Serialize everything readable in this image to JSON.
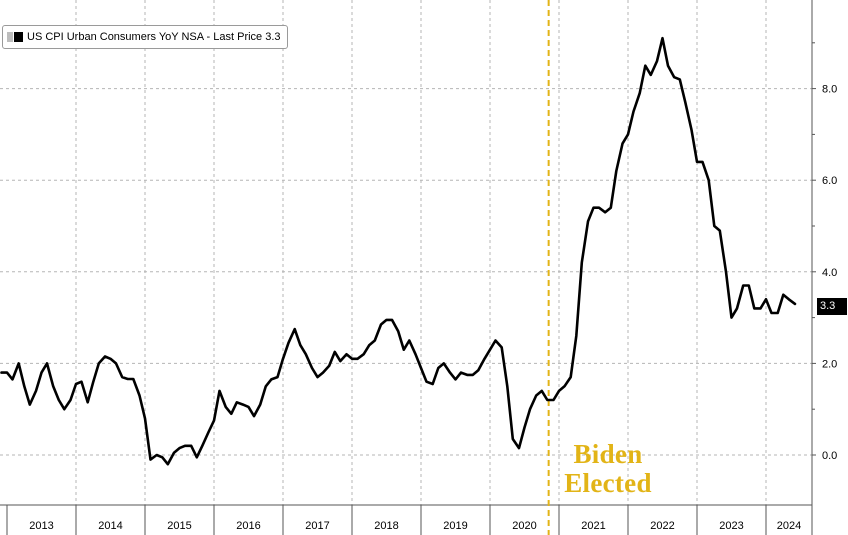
{
  "legend": {
    "label": "US CPI Urban Consumers YoY NSA - Last Price 3.3"
  },
  "annotation": {
    "line1": "Biden",
    "line2": "Elected"
  },
  "last_price_badge": "3.3",
  "colors": {
    "series": "#000000",
    "annotation": "#e2b417",
    "grid": "#b5b5b5",
    "axis": "#555555",
    "badge_bg": "#000000"
  },
  "chart_data": {
    "type": "line",
    "title": "",
    "xlabel": "",
    "ylabel": "",
    "x_ticks": [
      "2013",
      "2014",
      "2015",
      "2016",
      "2017",
      "2018",
      "2019",
      "2020",
      "2021",
      "2022",
      "2023",
      "2024"
    ],
    "y_ticks": [
      "0.0",
      "2.0",
      "4.0",
      "6.0",
      "8.0"
    ],
    "xlim": [
      2013.0,
      2024.75
    ],
    "ylim": [
      -1.0,
      10.0
    ],
    "y_axis_side": "right",
    "grid": true,
    "legend_position": "top-left",
    "vertical_marker": {
      "x": 2020.85,
      "label": "Biden Elected"
    },
    "series": [
      {
        "name": "US CPI Urban Consumers YoY NSA",
        "points": [
          [
            2012.92,
            1.8
          ],
          [
            2013.0,
            1.8
          ],
          [
            2013.08,
            1.65
          ],
          [
            2013.17,
            2.0
          ],
          [
            2013.25,
            1.5
          ],
          [
            2013.33,
            1.1
          ],
          [
            2013.42,
            1.4
          ],
          [
            2013.5,
            1.8
          ],
          [
            2013.58,
            2.0
          ],
          [
            2013.67,
            1.5
          ],
          [
            2013.75,
            1.2
          ],
          [
            2013.83,
            1.0
          ],
          [
            2013.92,
            1.2
          ],
          [
            2014.0,
            1.55
          ],
          [
            2014.08,
            1.6
          ],
          [
            2014.17,
            1.15
          ],
          [
            2014.25,
            1.6
          ],
          [
            2014.33,
            2.0
          ],
          [
            2014.42,
            2.15
          ],
          [
            2014.5,
            2.1
          ],
          [
            2014.58,
            2.0
          ],
          [
            2014.67,
            1.7
          ],
          [
            2014.75,
            1.66
          ],
          [
            2014.83,
            1.66
          ],
          [
            2014.92,
            1.3
          ],
          [
            2015.0,
            0.8
          ],
          [
            2015.08,
            -0.1
          ],
          [
            2015.17,
            0.0
          ],
          [
            2015.25,
            -0.05
          ],
          [
            2015.33,
            -0.2
          ],
          [
            2015.42,
            0.05
          ],
          [
            2015.5,
            0.15
          ],
          [
            2015.58,
            0.2
          ],
          [
            2015.67,
            0.2
          ],
          [
            2015.75,
            -0.05
          ],
          [
            2015.83,
            0.2
          ],
          [
            2015.92,
            0.5
          ],
          [
            2016.0,
            0.75
          ],
          [
            2016.08,
            1.4
          ],
          [
            2016.17,
            1.05
          ],
          [
            2016.25,
            0.9
          ],
          [
            2016.33,
            1.15
          ],
          [
            2016.42,
            1.1
          ],
          [
            2016.5,
            1.05
          ],
          [
            2016.58,
            0.85
          ],
          [
            2016.67,
            1.1
          ],
          [
            2016.75,
            1.5
          ],
          [
            2016.83,
            1.65
          ],
          [
            2016.92,
            1.7
          ],
          [
            2017.0,
            2.1
          ],
          [
            2017.08,
            2.45
          ],
          [
            2017.17,
            2.75
          ],
          [
            2017.25,
            2.4
          ],
          [
            2017.33,
            2.2
          ],
          [
            2017.42,
            1.9
          ],
          [
            2017.5,
            1.7
          ],
          [
            2017.58,
            1.8
          ],
          [
            2017.67,
            1.95
          ],
          [
            2017.75,
            2.25
          ],
          [
            2017.83,
            2.05
          ],
          [
            2017.92,
            2.2
          ],
          [
            2018.0,
            2.1
          ],
          [
            2018.08,
            2.1
          ],
          [
            2018.17,
            2.2
          ],
          [
            2018.25,
            2.4
          ],
          [
            2018.33,
            2.5
          ],
          [
            2018.42,
            2.85
          ],
          [
            2018.5,
            2.95
          ],
          [
            2018.58,
            2.95
          ],
          [
            2018.67,
            2.7
          ],
          [
            2018.75,
            2.3
          ],
          [
            2018.83,
            2.5
          ],
          [
            2018.92,
            2.2
          ],
          [
            2019.0,
            1.9
          ],
          [
            2019.08,
            1.6
          ],
          [
            2019.17,
            1.55
          ],
          [
            2019.25,
            1.9
          ],
          [
            2019.33,
            2.0
          ],
          [
            2019.42,
            1.8
          ],
          [
            2019.5,
            1.65
          ],
          [
            2019.58,
            1.8
          ],
          [
            2019.67,
            1.75
          ],
          [
            2019.75,
            1.75
          ],
          [
            2019.83,
            1.85
          ],
          [
            2019.92,
            2.1
          ],
          [
            2020.0,
            2.3
          ],
          [
            2020.08,
            2.5
          ],
          [
            2020.17,
            2.35
          ],
          [
            2020.25,
            1.5
          ],
          [
            2020.33,
            0.35
          ],
          [
            2020.42,
            0.15
          ],
          [
            2020.5,
            0.6
          ],
          [
            2020.58,
            1.0
          ],
          [
            2020.67,
            1.3
          ],
          [
            2020.75,
            1.4
          ],
          [
            2020.83,
            1.2
          ],
          [
            2020.92,
            1.2
          ],
          [
            2021.0,
            1.4
          ],
          [
            2021.08,
            1.5
          ],
          [
            2021.17,
            1.7
          ],
          [
            2021.25,
            2.6
          ],
          [
            2021.33,
            4.2
          ],
          [
            2021.42,
            5.1
          ],
          [
            2021.5,
            5.4
          ],
          [
            2021.58,
            5.4
          ],
          [
            2021.67,
            5.3
          ],
          [
            2021.75,
            5.4
          ],
          [
            2021.83,
            6.2
          ],
          [
            2021.92,
            6.8
          ],
          [
            2022.0,
            7.0
          ],
          [
            2022.08,
            7.5
          ],
          [
            2022.17,
            7.9
          ],
          [
            2022.25,
            8.5
          ],
          [
            2022.33,
            8.3
          ],
          [
            2022.42,
            8.6
          ],
          [
            2022.5,
            9.1
          ],
          [
            2022.58,
            8.5
          ],
          [
            2022.67,
            8.25
          ],
          [
            2022.75,
            8.2
          ],
          [
            2022.83,
            7.7
          ],
          [
            2022.92,
            7.1
          ],
          [
            2023.0,
            6.4
          ],
          [
            2023.08,
            6.4
          ],
          [
            2023.17,
            6.0
          ],
          [
            2023.25,
            5.0
          ],
          [
            2023.33,
            4.9
          ],
          [
            2023.42,
            4.0
          ],
          [
            2023.5,
            3.0
          ],
          [
            2023.58,
            3.2
          ],
          [
            2023.67,
            3.7
          ],
          [
            2023.75,
            3.7
          ],
          [
            2023.83,
            3.2
          ],
          [
            2023.92,
            3.2
          ],
          [
            2024.0,
            3.4
          ],
          [
            2024.08,
            3.1
          ],
          [
            2024.17,
            3.1
          ],
          [
            2024.25,
            3.5
          ],
          [
            2024.33,
            3.4
          ],
          [
            2024.42,
            3.3
          ]
        ]
      }
    ]
  }
}
